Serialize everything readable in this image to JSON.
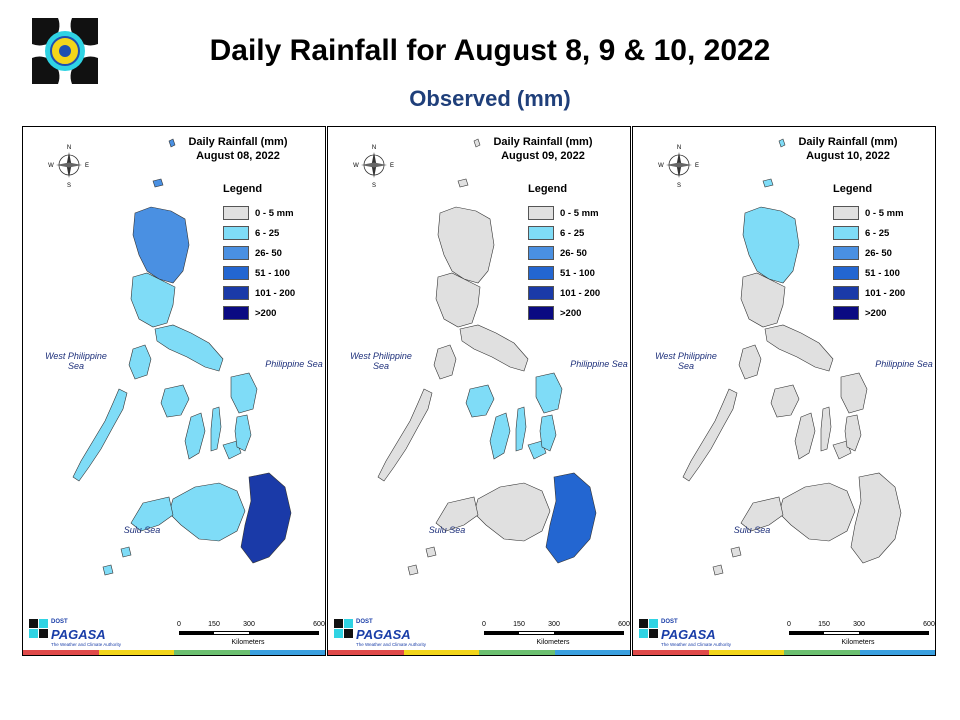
{
  "header": {
    "title": "Daily Rainfall for August 8, 9 & 10, 2022",
    "subtitle": "Observed (mm)"
  },
  "compass": {
    "n": "N",
    "e": "E",
    "s": "S",
    "w": "W"
  },
  "legend": {
    "title": "Legend",
    "items": [
      {
        "label": "0 - 5 mm",
        "color": "#e0e0e0"
      },
      {
        "label": "6 - 25",
        "color": "#7fdcf7"
      },
      {
        "label": "26- 50",
        "color": "#4a90e2"
      },
      {
        "label": "51 - 100",
        "color": "#2366d1"
      },
      {
        "label": "101 - 200",
        "color": "#1a3aa8"
      },
      {
        "label": ">200",
        "color": "#0a0a82"
      }
    ]
  },
  "seas": {
    "west": "West Philippine Sea",
    "philippine": "Philippine Sea",
    "sulu": "Sulu Sea"
  },
  "scale": {
    "ticks": [
      "0",
      "150",
      "300",
      "600"
    ],
    "unit": "Kilometers"
  },
  "branding": {
    "doct": "DOST",
    "name": "PAGASA",
    "tagline": "The Weather and Climate Authority"
  },
  "maps": [
    {
      "title_line1": "Daily Rainfall (mm)",
      "title_line2": "August 08, 2022",
      "luzon": "#7fdcf7",
      "north": "#4a90e2",
      "visayas": "#7fdcf7",
      "palawan": "#7fdcf7",
      "mindanao": "#7fdcf7",
      "mindanao_east": "#1a3aa8"
    },
    {
      "title_line1": "Daily Rainfall (mm)",
      "title_line2": "August 09, 2022",
      "luzon": "#e0e0e0",
      "north": "#e0e0e0",
      "visayas": "#7fdcf7",
      "palawan": "#e0e0e0",
      "mindanao": "#e0e0e0",
      "mindanao_east": "#2366d1"
    },
    {
      "title_line1": "Daily Rainfall (mm)",
      "title_line2": "August 10, 2022",
      "luzon": "#e0e0e0",
      "north": "#7fdcf7",
      "visayas": "#e0e0e0",
      "palawan": "#e0e0e0",
      "mindanao": "#e0e0e0",
      "mindanao_east": "#e0e0e0"
    }
  ]
}
